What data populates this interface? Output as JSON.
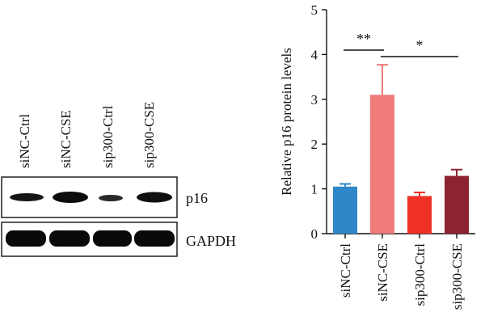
{
  "western_blot": {
    "lanes": [
      "siNC-Ctrl",
      "siNC-CSE",
      "sip300-Ctrl",
      "sip300-CSE"
    ],
    "rows": [
      {
        "label": "p16",
        "intensity": [
          0.82,
          1.0,
          0.5,
          0.9
        ]
      },
      {
        "label": "GAPDH",
        "intensity": [
          1.0,
          1.0,
          1.0,
          1.0
        ]
      }
    ]
  },
  "chart_data": {
    "type": "bar",
    "title": "",
    "xlabel": "",
    "ylabel": "Relative p16 protein levels",
    "categories": [
      "siNC-Ctrl",
      "siNC-CSE",
      "sip300-Ctrl",
      "sip300-CSE"
    ],
    "values": [
      1.05,
      3.1,
      0.84,
      1.29
    ],
    "errors": [
      0.06,
      0.67,
      0.08,
      0.14
    ],
    "colors": [
      "#2f86c8",
      "#f07b7b",
      "#ee3124",
      "#8b2331"
    ],
    "ylim": [
      0,
      5
    ],
    "yticks": [
      "0",
      "1",
      "2",
      "3",
      "4",
      "5"
    ],
    "grid": false,
    "significance": [
      {
        "label": "**",
        "from": 0,
        "to": 1
      },
      {
        "label": "*",
        "from": 1,
        "to": 3
      }
    ]
  }
}
